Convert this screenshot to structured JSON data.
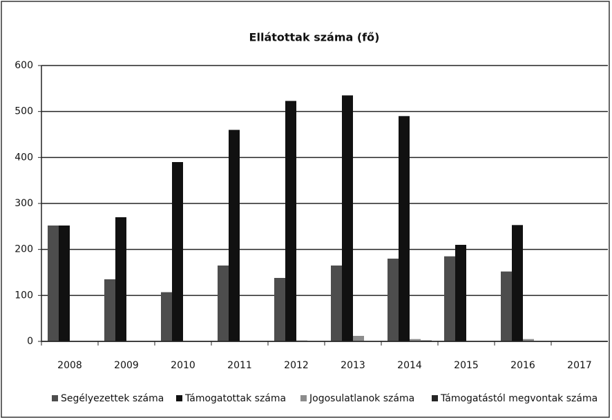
{
  "chart_data": {
    "type": "bar",
    "title": "Ellátottak száma (fő)",
    "categories": [
      "2008",
      "2009",
      "2010",
      "2011",
      "2012",
      "2013",
      "2014",
      "2015",
      "2016",
      "2017"
    ],
    "series": [
      {
        "name": "Segélyezettek száma",
        "color": "#4d4d4d",
        "values": [
          252,
          135,
          107,
          165,
          138,
          165,
          180,
          185,
          152,
          0
        ]
      },
      {
        "name": "Támogatottak száma",
        "color": "#111111",
        "values": [
          252,
          270,
          390,
          460,
          523,
          535,
          490,
          210,
          253,
          0
        ]
      },
      {
        "name": "Jogosulatlanok száma",
        "color": "#8c8c8c",
        "values": [
          0,
          0,
          0,
          0,
          2,
          12,
          5,
          0,
          5,
          0
        ]
      },
      {
        "name": "Támogatástól megvontak száma",
        "color": "#262626",
        "values": [
          0,
          0,
          0,
          0,
          0,
          0,
          2,
          0,
          0,
          0
        ]
      }
    ],
    "ylim": [
      0,
      600
    ],
    "yticks": [
      0,
      100,
      200,
      300,
      400,
      500,
      600
    ],
    "grid": true,
    "legend": "bottom"
  }
}
